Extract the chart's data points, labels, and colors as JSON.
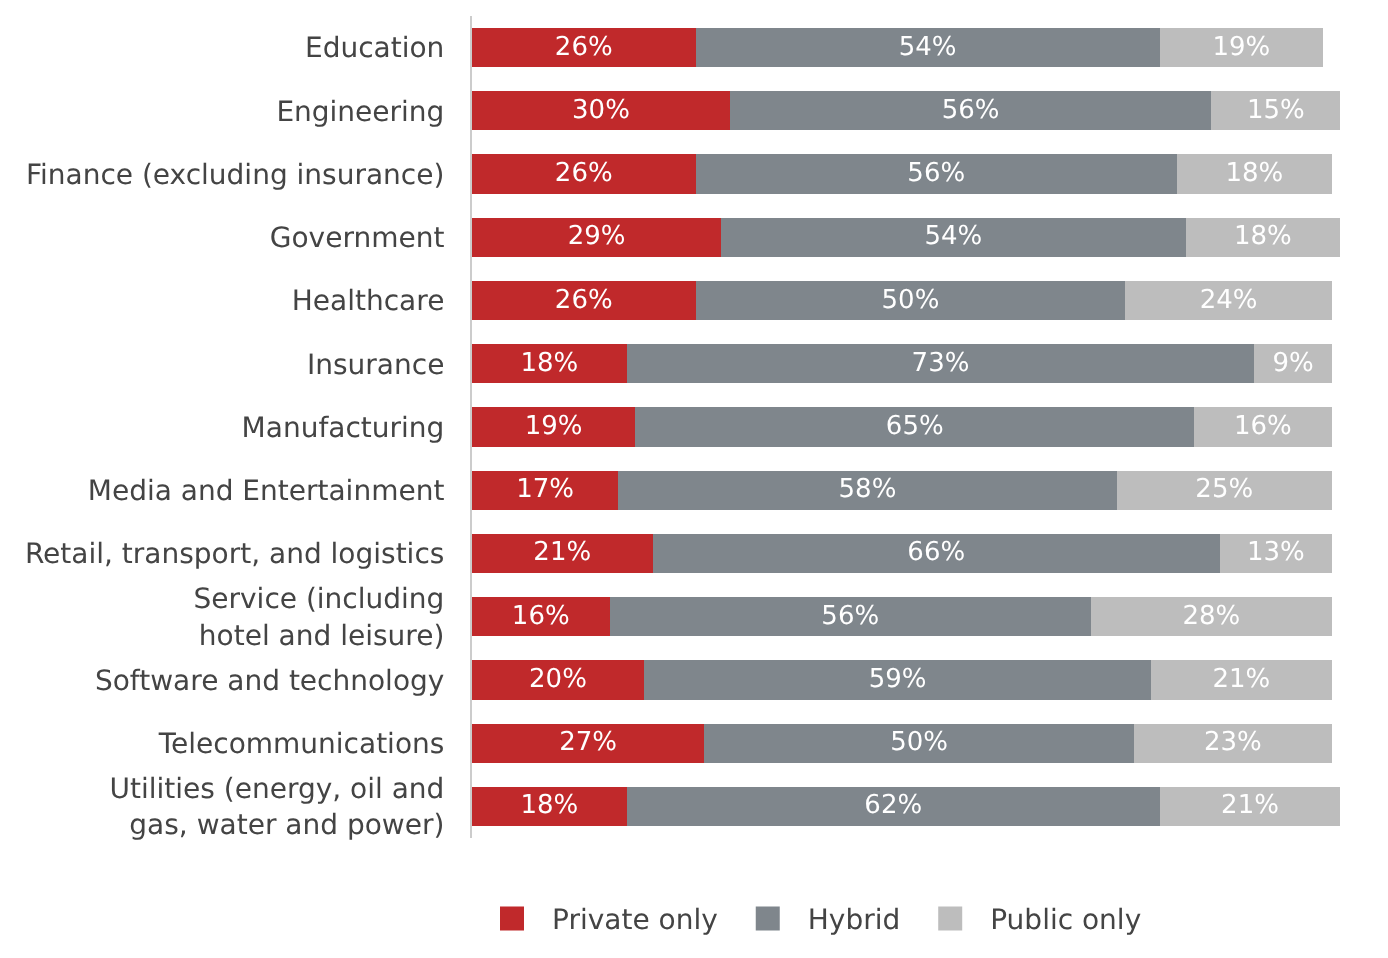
{
  "chart_data": {
    "type": "bar",
    "orientation": "horizontal",
    "stacked": true,
    "legend": "bottom",
    "categories": [
      "Education",
      "Engineering",
      "Finance (excluding insurance)",
      "Government",
      "Healthcare",
      "Insurance",
      "Manufacturing",
      "Media and Entertainment",
      "Retail, transport, and logistics",
      "Service (including\nhotel and leisure)",
      "Software and technology",
      "Telecommunications",
      "Utilities (energy, oil and\ngas, water and power)"
    ],
    "series": [
      {
        "name": "Private only",
        "color": "#c0292b",
        "values": [
          26,
          30,
          26,
          29,
          26,
          18,
          19,
          17,
          21,
          16,
          20,
          27,
          18
        ],
        "value_labels": [
          "26%",
          "30%",
          "26%",
          "29%",
          "26%",
          "18%",
          "19%",
          "17%",
          "21%",
          "16%",
          "20%",
          "27%",
          "18%"
        ]
      },
      {
        "name": "Hybrid",
        "color": "#7f868c",
        "values": [
          54,
          56,
          56,
          54,
          50,
          73,
          65,
          58,
          66,
          56,
          59,
          50,
          62
        ],
        "value_labels": [
          "54%",
          "56%",
          "56%",
          "54%",
          "50%",
          "73%",
          "65%",
          "58%",
          "66%",
          "56%",
          "59%",
          "50%",
          "62%"
        ]
      },
      {
        "name": "Public only",
        "color": "#bdbdbd",
        "values": [
          19,
          15,
          18,
          18,
          24,
          9,
          16,
          25,
          13,
          28,
          21,
          23,
          21
        ],
        "value_labels": [
          "19%",
          "15%",
          "18%",
          "18%",
          "24%",
          "9%",
          "16%",
          "25%",
          "13%",
          "28%",
          "21%",
          "23%",
          "21%"
        ]
      }
    ]
  }
}
